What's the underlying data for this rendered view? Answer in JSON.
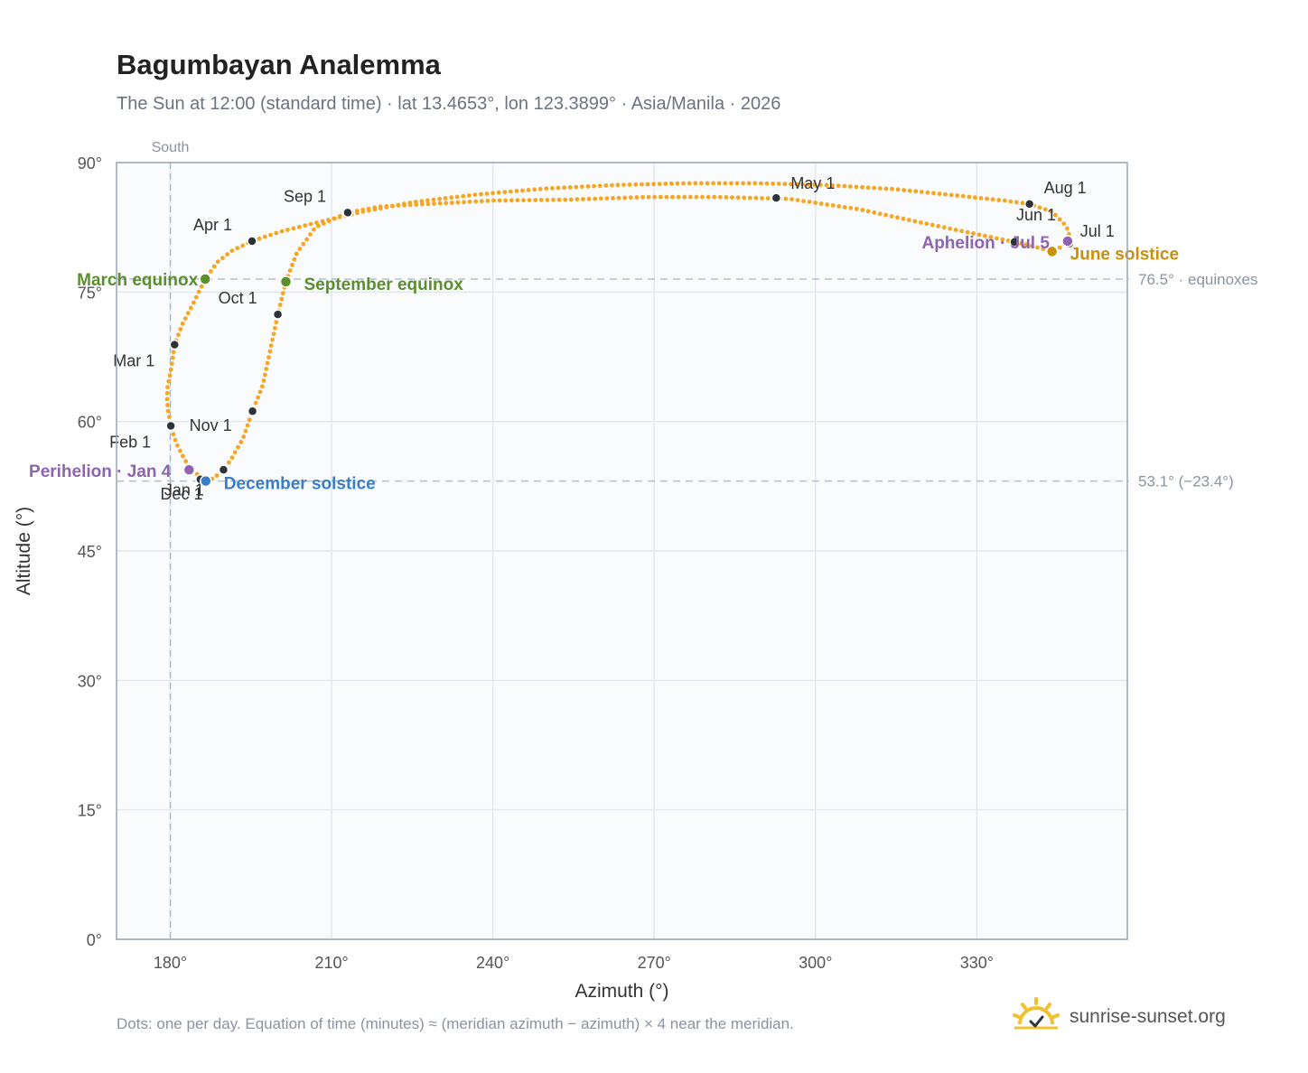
{
  "header": {
    "title": "Bagumbayan Analemma",
    "subtitle": "The Sun at 12:00 (standard time) · lat 13.4653°, lon 123.3899° · Asia/Manila · 2026"
  },
  "footer": {
    "note": "Dots: one per day. Equation of time (minutes) ≈ (meridian azimuth − azimuth) × 4 near the meridian.",
    "brand": "sunrise-sunset.org",
    "brand_icon": "sun-icon"
  },
  "colors": {
    "curve": "#f5a623",
    "month_dot": "#2d3339",
    "equinox": "#5a8f2e",
    "december_solstice": "#3b7dc4",
    "june_solstice": "#c8900f",
    "apsides": "#8e63b0",
    "guide": "#b8c0ca",
    "plot_bg": "#f9fbfd",
    "grid": "#e3e8ee",
    "frame": "#9aa5b1"
  },
  "chart_data": {
    "type": "scatter",
    "xlabel": "Azimuth (°)",
    "ylabel": "Altitude (°)",
    "xlim": [
      170,
      358
    ],
    "ylim": [
      0,
      90
    ],
    "xticks": [
      180,
      210,
      240,
      270,
      300,
      330
    ],
    "xtick_labels": [
      "180°",
      "210°",
      "240°",
      "270°",
      "300°",
      "330°"
    ],
    "yticks": [
      0,
      15,
      30,
      45,
      60,
      75,
      90
    ],
    "ytick_labels": [
      "0°",
      "15°",
      "30°",
      "45°",
      "60°",
      "75°",
      "90°"
    ],
    "grid": true,
    "guides": {
      "south": {
        "azimuth": 180,
        "label": "South"
      },
      "equinox_line": {
        "altitude": 76.5,
        "label": "76.5° · equinoxes"
      },
      "solstice_line": {
        "altitude": 53.1,
        "label": "53.1° (−23.4°)"
      }
    },
    "path_waypoints": [
      [
        186.0,
        53.6
      ],
      [
        184.0,
        54.2
      ],
      [
        182.5,
        55.8
      ],
      [
        181.1,
        57.5
      ],
      [
        180.1,
        59.5
      ],
      [
        179.6,
        61.2
      ],
      [
        179.4,
        62.6
      ],
      [
        179.5,
        64.0
      ],
      [
        180.2,
        66.2
      ],
      [
        180.8,
        68.9
      ],
      [
        182.2,
        71.2
      ],
      [
        184.2,
        73.6
      ],
      [
        186.5,
        76.5
      ],
      [
        188.8,
        78.5
      ],
      [
        191.5,
        79.8
      ],
      [
        195.2,
        80.9
      ],
      [
        200.5,
        82.0
      ],
      [
        207.0,
        83.0
      ],
      [
        215.0,
        84.2
      ],
      [
        225.0,
        85.4
      ],
      [
        237.0,
        86.3
      ],
      [
        250.0,
        87.0
      ],
      [
        263.0,
        87.4
      ],
      [
        276.0,
        87.6
      ],
      [
        289.0,
        87.6
      ],
      [
        302.0,
        87.4
      ],
      [
        315.0,
        86.9
      ],
      [
        326.0,
        86.2
      ],
      [
        335.0,
        85.6
      ],
      [
        339.8,
        85.2
      ],
      [
        344.0,
        84.3
      ],
      [
        346.7,
        82.6
      ],
      [
        347.3,
        81.4
      ],
      [
        346.9,
        80.9
      ],
      [
        345.9,
        80.3
      ],
      [
        344.0,
        79.7
      ],
      [
        340.5,
        80.3
      ],
      [
        337.0,
        80.8
      ],
      [
        330.0,
        81.7
      ],
      [
        320.0,
        83.0
      ],
      [
        308.0,
        84.6
      ],
      [
        295.0,
        85.8
      ],
      [
        282.0,
        86.0
      ],
      [
        268.0,
        86.0
      ],
      [
        254.0,
        85.7
      ],
      [
        240.0,
        85.6
      ],
      [
        228.0,
        85.2
      ],
      [
        219.0,
        84.9
      ],
      [
        213.0,
        84.2
      ],
      [
        207.0,
        82.5
      ],
      [
        203.5,
        79.5
      ],
      [
        201.5,
        76.2
      ],
      [
        200.0,
        72.4
      ],
      [
        198.5,
        68.0
      ],
      [
        197.2,
        64.2
      ],
      [
        195.3,
        61.2
      ],
      [
        193.5,
        58.0
      ],
      [
        191.2,
        55.5
      ],
      [
        189.9,
        54.4
      ],
      [
        188.0,
        53.4
      ],
      [
        186.6,
        53.1
      ],
      [
        186.0,
        53.6
      ]
    ],
    "month_markers": [
      {
        "label": "Jan 1",
        "azimuth": 185.6,
        "altitude": 53.3
      },
      {
        "label": "Feb 1",
        "azimuth": 180.1,
        "altitude": 59.5
      },
      {
        "label": "Mar 1",
        "azimuth": 180.8,
        "altitude": 68.9
      },
      {
        "label": "Apr 1",
        "azimuth": 195.2,
        "altitude": 80.9
      },
      {
        "label": "May 1",
        "azimuth": 292.7,
        "altitude": 85.9
      },
      {
        "label": "Jun 1",
        "azimuth": 337.0,
        "altitude": 80.8
      },
      {
        "label": "Jul 1",
        "azimuth": 347.2,
        "altitude": 80.6
      },
      {
        "label": "Aug 1",
        "azimuth": 339.8,
        "altitude": 85.2
      },
      {
        "label": "Sep 1",
        "azimuth": 213.0,
        "altitude": 84.2
      },
      {
        "label": "Oct 1",
        "azimuth": 200.0,
        "altitude": 72.4
      },
      {
        "label": "Nov 1",
        "azimuth": 195.3,
        "altitude": 61.2
      },
      {
        "label": "Dec 1",
        "azimuth": 189.9,
        "altitude": 54.4
      }
    ],
    "events": [
      {
        "label": "March equinox",
        "azimuth": 186.5,
        "altitude": 76.5,
        "color": "#5a8f2e"
      },
      {
        "label": "September equinox",
        "azimuth": 201.5,
        "altitude": 76.2,
        "color": "#5a8f2e"
      },
      {
        "label": "December solstice",
        "azimuth": 186.6,
        "altitude": 53.1,
        "color": "#3b7dc4"
      },
      {
        "label": "June solstice",
        "azimuth": 344.0,
        "altitude": 79.7,
        "color": "#c8900f"
      },
      {
        "label": "Perihelion · Jan 4",
        "azimuth": 183.5,
        "altitude": 54.4,
        "color": "#8e63b0"
      },
      {
        "label": "Aphelion · Jul 5",
        "azimuth": 346.9,
        "altitude": 80.9,
        "color": "#8e63b0"
      }
    ]
  }
}
